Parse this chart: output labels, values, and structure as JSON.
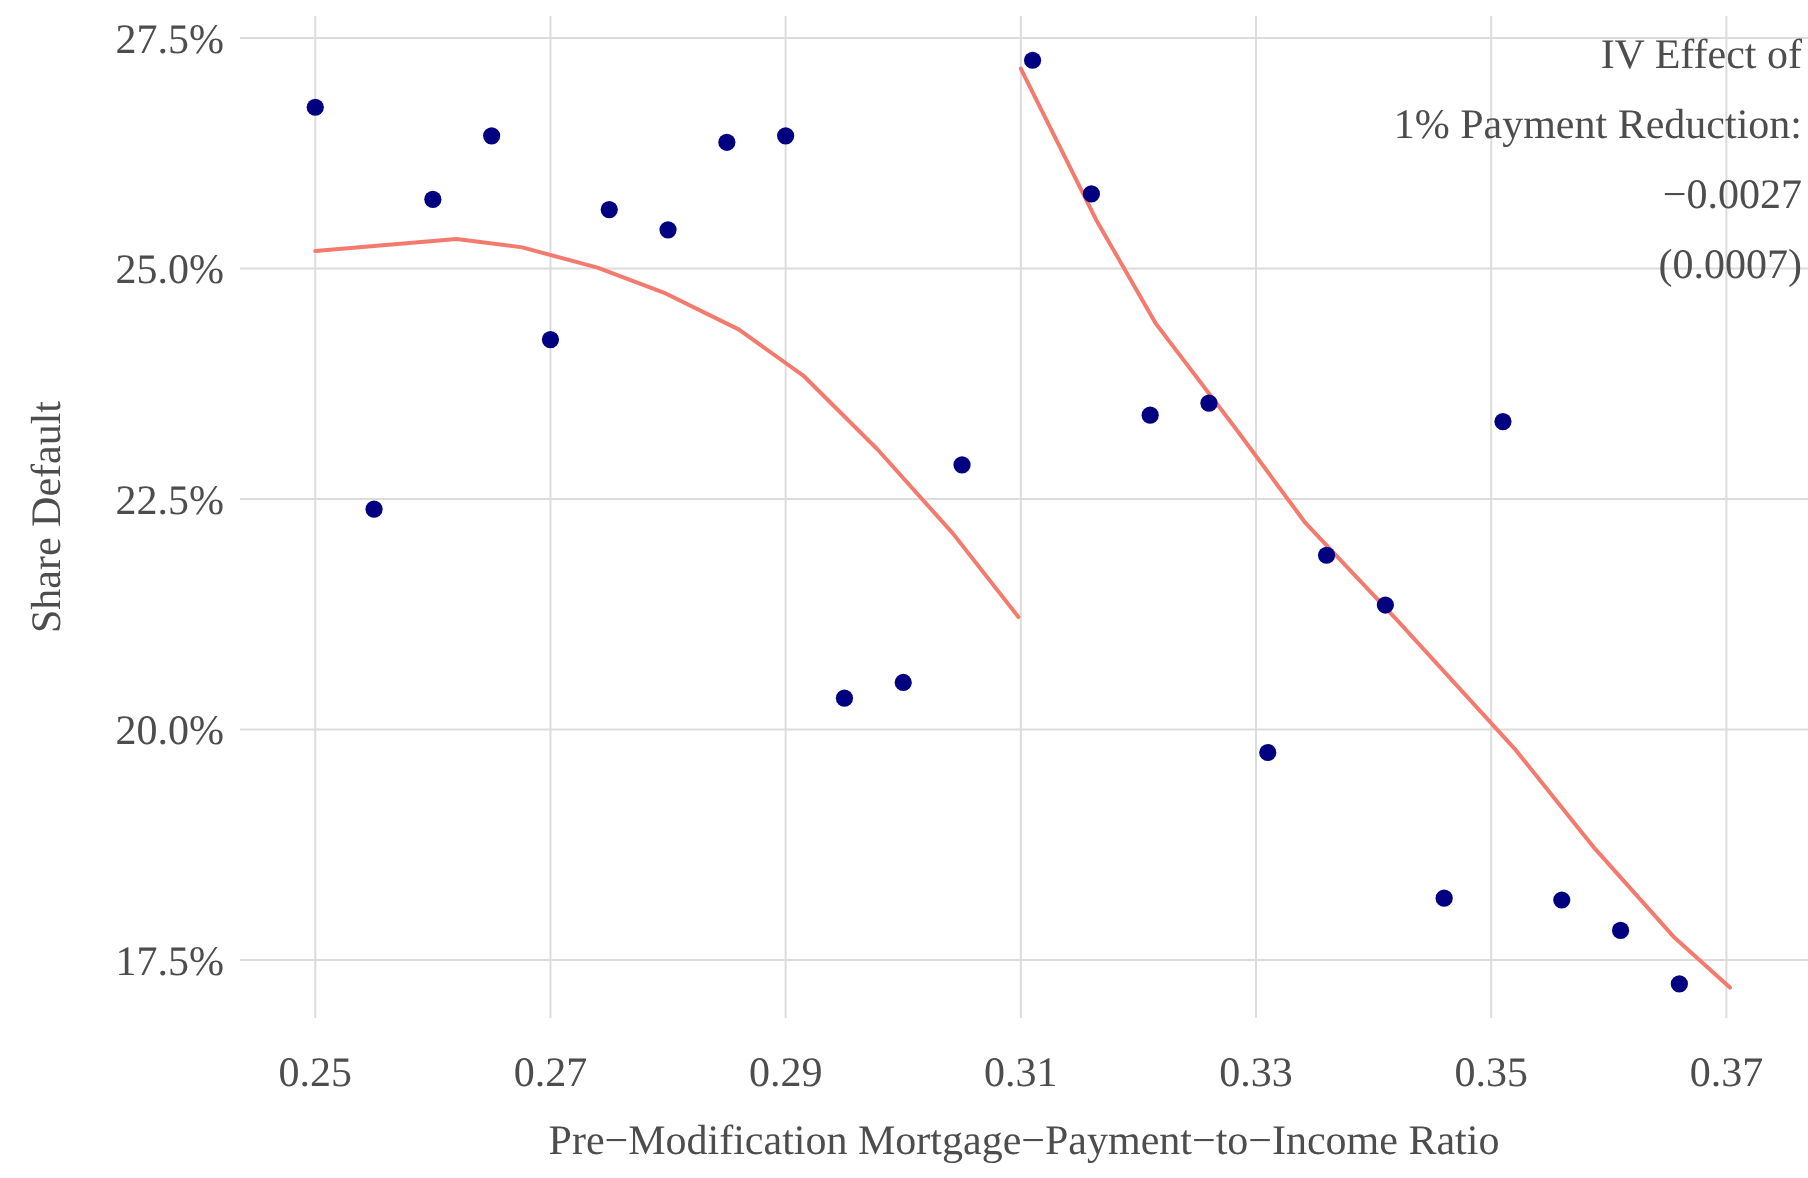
{
  "chart_data": {
    "type": "scatter",
    "xlabel": "Pre−Modification Mortgage−Payment−to−Income Ratio",
    "ylabel": "Share Default",
    "annotations": [
      "IV Effect of",
      "1% Payment Reduction:",
      "−0.0027",
      "(0.0007)"
    ],
    "series": [
      {
        "marker": "circle",
        "color": "#000080",
        "x": [
          0.25,
          0.255,
          0.26,
          0.265,
          0.27,
          0.275,
          0.28,
          0.285,
          0.29,
          0.295,
          0.3,
          0.305,
          0.311,
          0.316,
          0.321,
          0.326,
          0.331,
          0.336,
          0.341,
          0.346,
          0.351,
          0.356,
          0.361,
          0.366
        ],
        "values": [
          26.75,
          22.39,
          25.75,
          26.44,
          24.23,
          25.64,
          25.42,
          26.37,
          26.44,
          20.34,
          20.51,
          22.87,
          27.26,
          25.81,
          23.41,
          23.54,
          19.75,
          21.89,
          21.35,
          18.17,
          23.34,
          18.15,
          17.82,
          17.24
        ]
      },
      {
        "type": "line",
        "color": "#f47a6e",
        "x": [
          0.25,
          0.262,
          0.2676,
          0.274,
          0.2798,
          0.286,
          0.2915,
          0.2978,
          0.3042,
          0.3098
        ],
        "values": [
          25.19,
          25.32,
          25.23,
          25.01,
          24.73,
          24.34,
          23.84,
          23.04,
          22.13,
          21.22
        ]
      },
      {
        "type": "line",
        "color": "#f47a6e",
        "x": [
          0.31,
          0.3164,
          0.3215,
          0.3283,
          0.3342,
          0.3419,
          0.352,
          0.3588,
          0.3656,
          0.3703
        ],
        "values": [
          27.17,
          25.53,
          24.4,
          23.26,
          22.24,
          21.2,
          19.79,
          18.71,
          17.74,
          17.2
        ]
      }
    ],
    "xlim": [
      0.2436,
      0.3766
    ],
    "xticks": [
      0.25,
      0.27,
      0.29,
      0.31,
      0.33,
      0.35,
      0.37
    ],
    "ylim": [
      16.87,
      27.74
    ],
    "yticks": [
      {
        "value": 17.5,
        "label": "17.5%"
      },
      {
        "value": 20,
        "label": "20.0%"
      },
      {
        "value": 22.5,
        "label": "22.5%"
      },
      {
        "value": 25,
        "label": "25.0%"
      },
      {
        "value": 27.5,
        "label": "27.5%"
      }
    ],
    "grid": true,
    "line_style": "solid"
  }
}
